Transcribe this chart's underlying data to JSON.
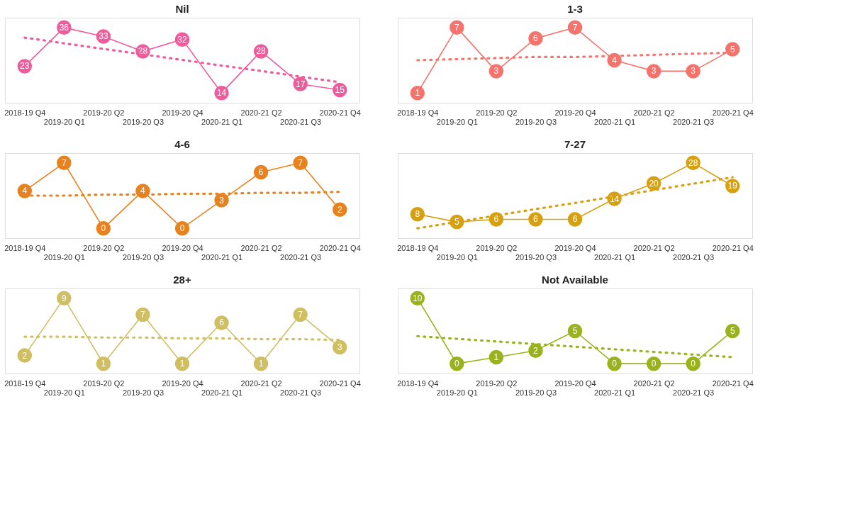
{
  "chart_data": [
    {
      "type": "line",
      "title": "Nil",
      "categories": [
        "2018-19 Q4",
        "2019-20 Q1",
        "2019-20 Q2",
        "2019-20 Q3",
        "2019-20 Q4",
        "2020-21 Q1",
        "2020-21 Q2",
        "2020-21 Q3",
        "2020-21 Q4"
      ],
      "tick_labels": "x",
      "series": [
        {
          "color": "#ee5c9b",
          "marker": "circle",
          "line_style": "solid",
          "values": [
            23,
            36,
            33,
            28,
            32,
            14,
            28,
            17,
            15
          ],
          "value_labels": [
            "23",
            "36",
            "33",
            "28",
            "32",
            "14",
            "28",
            "17",
            "15"
          ]
        },
        {
          "type": "line",
          "color": "#ee5c9b",
          "marker": "none",
          "line_style": "dotted",
          "values": [
            32.6,
            30.7,
            28.8,
            27.0,
            25.1,
            23.2,
            21.4,
            19.5,
            17.6
          ]
        }
      ]
    },
    {
      "type": "line",
      "title": "1-3",
      "categories": [
        "2018-19 Q4",
        "2019-20 Q1",
        "2019-20 Q2",
        "2019-20 Q3",
        "2019-20 Q4",
        "2020-21 Q1",
        "2020-21 Q2",
        "2020-21 Q3",
        "2020-21 Q4"
      ],
      "tick_labels": "x",
      "series": [
        {
          "color": "#f4736c",
          "marker": "circle",
          "line_style": "solid",
          "values": [
            1,
            7,
            3,
            6,
            7,
            4,
            3,
            3,
            5
          ],
          "value_labels": [
            "1",
            "7",
            "3",
            "6",
            "7",
            "4",
            "3",
            "3",
            "5"
          ]
        },
        {
          "type": "line",
          "color": "#f4736c",
          "marker": "none",
          "line_style": "dotted",
          "values": [
            4.0,
            4.1,
            4.2,
            4.3,
            4.3,
            4.4,
            4.5,
            4.6,
            4.7
          ]
        }
      ]
    },
    {
      "type": "line",
      "title": "4-6",
      "categories": [
        "2018-19 Q4",
        "2019-20 Q1",
        "2019-20 Q2",
        "2019-20 Q3",
        "2019-20 Q4",
        "2020-21 Q1",
        "2020-21 Q2",
        "2020-21 Q3",
        "2020-21 Q4"
      ],
      "tick_labels": "x",
      "series": [
        {
          "color": "#e8821e",
          "marker": "circle",
          "line_style": "solid",
          "values": [
            4,
            7,
            0,
            4,
            0,
            3,
            6,
            7,
            2
          ],
          "value_labels": [
            "4",
            "7",
            "0",
            "4",
            "0",
            "3",
            "6",
            "7",
            "2"
          ]
        },
        {
          "type": "line",
          "color": "#e8821e",
          "marker": "none",
          "line_style": "dotted",
          "values": [
            3.5,
            3.5,
            3.6,
            3.6,
            3.7,
            3.7,
            3.8,
            3.8,
            3.9
          ]
        }
      ]
    },
    {
      "type": "line",
      "title": "7-27",
      "categories": [
        "2018-19 Q4",
        "2019-20 Q1",
        "2019-20 Q2",
        "2019-20 Q3",
        "2019-20 Q4",
        "2020-21 Q1",
        "2020-21 Q2",
        "2020-21 Q3",
        "2020-21 Q4"
      ],
      "tick_labels": "x",
      "series": [
        {
          "color": "#d6a010",
          "marker": "circle",
          "line_style": "solid",
          "values": [
            8,
            5,
            6,
            6,
            6,
            14,
            20,
            28,
            19
          ],
          "value_labels": [
            "8",
            "5",
            "6",
            "6",
            "6",
            "14",
            "20",
            "28",
            "19"
          ]
        },
        {
          "type": "line",
          "color": "#d6a010",
          "marker": "none",
          "line_style": "dotted",
          "values": [
            2.5,
            5.0,
            7.5,
            10.0,
            12.4,
            14.9,
            17.4,
            19.9,
            22.4
          ]
        }
      ]
    },
    {
      "type": "line",
      "title": "28+",
      "categories": [
        "2018-19 Q4",
        "2019-20 Q1",
        "2019-20 Q2",
        "2019-20 Q3",
        "2019-20 Q4",
        "2020-21 Q1",
        "2020-21 Q2",
        "2020-21 Q3",
        "2020-21 Q4"
      ],
      "tick_labels": "x",
      "series": [
        {
          "color": "#cfbf62",
          "marker": "circle",
          "line_style": "solid",
          "values": [
            2,
            9,
            1,
            7,
            1,
            6,
            1,
            7,
            3
          ],
          "value_labels": [
            "2",
            "9",
            "1",
            "7",
            "1",
            "6",
            "1",
            "7",
            "3"
          ]
        },
        {
          "type": "line",
          "color": "#cfbf62",
          "marker": "none",
          "line_style": "dotted",
          "values": [
            4.3,
            4.3,
            4.2,
            4.2,
            4.1,
            4.1,
            4.0,
            4.0,
            3.9
          ]
        }
      ]
    },
    {
      "type": "line",
      "title": "Not Available",
      "categories": [
        "2018-19 Q4",
        "2019-20 Q1",
        "2019-20 Q2",
        "2019-20 Q3",
        "2019-20 Q4",
        "2020-21 Q1",
        "2020-21 Q2",
        "2020-21 Q3",
        "2020-21 Q4"
      ],
      "tick_labels": "x",
      "series": [
        {
          "color": "#9ab31c",
          "marker": "circle",
          "line_style": "solid",
          "values": [
            10,
            0,
            1,
            2,
            5,
            0,
            0,
            0,
            5
          ],
          "value_labels": [
            "10",
            "0",
            "1",
            "2",
            "5",
            "0",
            "0",
            "0",
            "5"
          ]
        },
        {
          "type": "line",
          "color": "#9ab31c",
          "marker": "none",
          "line_style": "dotted",
          "values": [
            4.2,
            3.8,
            3.4,
            3.0,
            2.6,
            2.2,
            1.8,
            1.4,
            1.0
          ]
        }
      ]
    }
  ]
}
